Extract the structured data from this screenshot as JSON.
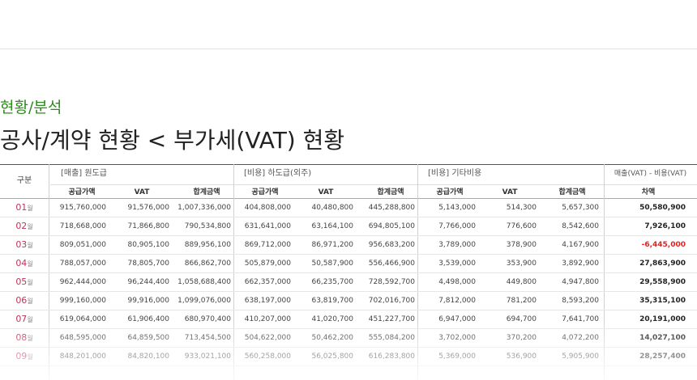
{
  "breadcrumb": "현황/분석",
  "title": "공사/계약 현황 < 부가세(VAT) 현황",
  "table": {
    "header": {
      "division": "구분",
      "groups": [
        "[매출] 원도급",
        "[비용] 하도급(외주)",
        "[비용] 기타비용",
        "매출(VAT) - 비용(VAT)"
      ],
      "subheaders": [
        "공급가액",
        "VAT",
        "합계금액",
        "공급가액",
        "VAT",
        "합계금액",
        "공급가액",
        "VAT",
        "합계금액",
        "차액"
      ]
    },
    "month_unit": "월",
    "rows": [
      {
        "month": "01",
        "cells": [
          "915,760,000",
          "91,576,000",
          "1,007,336,000",
          "404,808,000",
          "40,480,800",
          "445,288,800",
          "5,143,000",
          "514,300",
          "5,657,300",
          "50,580,900"
        ]
      },
      {
        "month": "02",
        "cells": [
          "718,668,000",
          "71,866,800",
          "790,534,800",
          "631,641,000",
          "63,164,100",
          "694,805,100",
          "7,766,000",
          "776,600",
          "8,542,600",
          "7,926,100"
        ]
      },
      {
        "month": "03",
        "cells": [
          "809,051,000",
          "80,905,100",
          "889,956,100",
          "869,712,000",
          "86,971,200",
          "956,683,200",
          "3,789,000",
          "378,900",
          "4,167,900",
          "-6,445,000"
        ]
      },
      {
        "month": "04",
        "cells": [
          "788,057,000",
          "78,805,700",
          "866,862,700",
          "505,879,000",
          "50,587,900",
          "556,466,900",
          "3,539,000",
          "353,900",
          "3,892,900",
          "27,863,900"
        ]
      },
      {
        "month": "05",
        "cells": [
          "962,444,000",
          "96,244,400",
          "1,058,688,400",
          "662,357,000",
          "66,235,700",
          "728,592,700",
          "4,498,000",
          "449,800",
          "4,947,800",
          "29,558,900"
        ]
      },
      {
        "month": "06",
        "cells": [
          "999,160,000",
          "99,916,000",
          "1,099,076,000",
          "638,197,000",
          "63,819,700",
          "702,016,700",
          "7,812,000",
          "781,200",
          "8,593,200",
          "35,315,100"
        ]
      },
      {
        "month": "07",
        "cells": [
          "619,064,000",
          "61,906,400",
          "680,970,400",
          "410,207,000",
          "41,020,700",
          "451,227,700",
          "6,947,000",
          "694,700",
          "7,641,700",
          "20,191,000"
        ]
      },
      {
        "month": "08",
        "cells": [
          "648,595,000",
          "64,859,500",
          "713,454,500",
          "504,622,000",
          "50,462,200",
          "555,084,200",
          "3,702,000",
          "370,200",
          "4,072,200",
          "14,027,100"
        ]
      },
      {
        "month": "09",
        "cells": [
          "848,201,000",
          "84,820,100",
          "933,021,100",
          "560,258,000",
          "56,025,800",
          "616,283,800",
          "5,369,000",
          "536,900",
          "5,905,900",
          "28,257,400"
        ]
      }
    ]
  }
}
